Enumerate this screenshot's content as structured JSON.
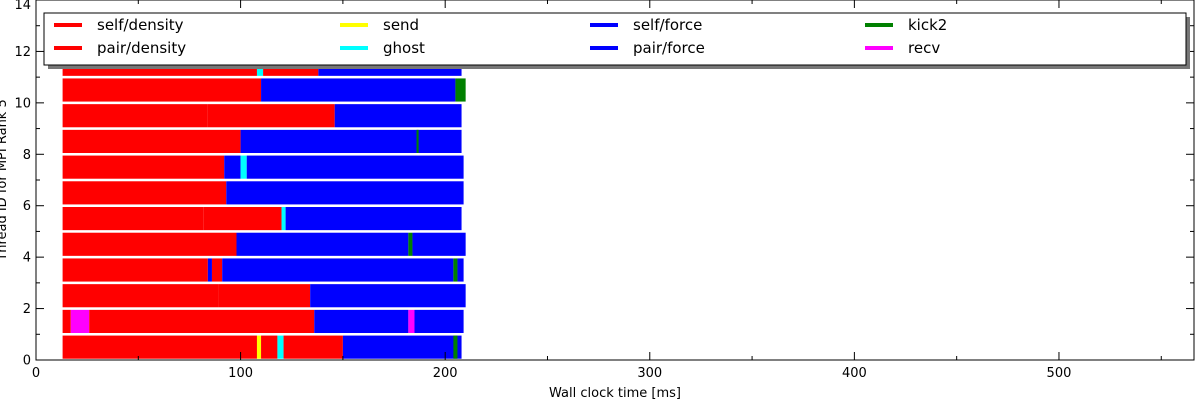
{
  "chart_data": {
    "type": "bar",
    "xlabel": "Wall clock time [ms]",
    "ylabel": "Thread ID for MPI Rank 5",
    "xlim": [
      0,
      566
    ],
    "ylim": [
      0,
      14
    ],
    "xticks": [
      0,
      100,
      200,
      300,
      400,
      500
    ],
    "yticks": [
      0,
      2,
      4,
      6,
      8,
      10,
      12,
      14
    ],
    "grid": false,
    "legend_position": "top",
    "legend": [
      {
        "label": "self/density",
        "color": "#ff0000"
      },
      {
        "label": "pair/density",
        "color": "#ff0000"
      },
      {
        "label": "send",
        "color": "#ffff00"
      },
      {
        "label": "ghost",
        "color": "#00ffff"
      },
      {
        "label": "self/force",
        "color": "#0000ff"
      },
      {
        "label": "pair/force",
        "color": "#0000ff"
      },
      {
        "label": "kick2",
        "color": "#008000"
      },
      {
        "label": "recv",
        "color": "#ff00ff"
      }
    ],
    "colors": {
      "self/density": "#ff0000",
      "pair/density": "#ff0000",
      "send": "#ffff00",
      "ghost": "#00ffff",
      "self/force": "#0000ff",
      "pair/force": "#0000ff",
      "kick2": "#008000",
      "recv": "#ff00ff"
    },
    "threads": [
      {
        "thread": 0,
        "tasks": [
          {
            "start": 13,
            "end": 108,
            "type": "pair/density"
          },
          {
            "start": 108,
            "end": 110,
            "type": "send"
          },
          {
            "start": 110,
            "end": 118,
            "type": "pair/density"
          },
          {
            "start": 118,
            "end": 121,
            "type": "ghost"
          },
          {
            "start": 121,
            "end": 150,
            "type": "pair/density"
          },
          {
            "start": 150,
            "end": 208,
            "type": "pair/force"
          },
          {
            "start": 204,
            "end": 206,
            "type": "kick2"
          }
        ]
      },
      {
        "thread": 1,
        "tasks": [
          {
            "start": 13,
            "end": 17,
            "type": "pair/density"
          },
          {
            "start": 17,
            "end": 26,
            "type": "recv"
          },
          {
            "start": 26,
            "end": 136,
            "type": "pair/density"
          },
          {
            "start": 136,
            "end": 182,
            "type": "pair/force"
          },
          {
            "start": 182,
            "end": 185,
            "type": "recv"
          },
          {
            "start": 185,
            "end": 209,
            "type": "pair/force"
          }
        ]
      },
      {
        "thread": 2,
        "tasks": [
          {
            "start": 13,
            "end": 89,
            "type": "pair/density"
          },
          {
            "start": 89,
            "end": 134,
            "type": "pair/density"
          },
          {
            "start": 134,
            "end": 210,
            "type": "pair/force"
          }
        ]
      },
      {
        "thread": 3,
        "tasks": [
          {
            "start": 13,
            "end": 84,
            "type": "pair/density"
          },
          {
            "start": 84,
            "end": 86,
            "type": "pair/force"
          },
          {
            "start": 86,
            "end": 91,
            "type": "pair/density"
          },
          {
            "start": 91,
            "end": 204,
            "type": "pair/force"
          },
          {
            "start": 204,
            "end": 206,
            "type": "kick2"
          },
          {
            "start": 206,
            "end": 209,
            "type": "pair/force"
          }
        ]
      },
      {
        "thread": 4,
        "tasks": [
          {
            "start": 13,
            "end": 98,
            "type": "pair/density"
          },
          {
            "start": 98,
            "end": 182,
            "type": "pair/force"
          },
          {
            "start": 182,
            "end": 184,
            "type": "kick2"
          },
          {
            "start": 184,
            "end": 210,
            "type": "pair/force"
          }
        ]
      },
      {
        "thread": 5,
        "tasks": [
          {
            "start": 13,
            "end": 82,
            "type": "pair/density"
          },
          {
            "start": 82,
            "end": 120,
            "type": "pair/density"
          },
          {
            "start": 120,
            "end": 122,
            "type": "ghost"
          },
          {
            "start": 122,
            "end": 208,
            "type": "pair/force"
          }
        ]
      },
      {
        "thread": 6,
        "tasks": [
          {
            "start": 13,
            "end": 93,
            "type": "pair/density"
          },
          {
            "start": 93,
            "end": 209,
            "type": "pair/force"
          }
        ]
      },
      {
        "thread": 7,
        "tasks": [
          {
            "start": 13,
            "end": 92,
            "type": "pair/density"
          },
          {
            "start": 92,
            "end": 100,
            "type": "pair/force"
          },
          {
            "start": 100,
            "end": 103,
            "type": "ghost"
          },
          {
            "start": 103,
            "end": 209,
            "type": "pair/force"
          }
        ]
      },
      {
        "thread": 8,
        "tasks": [
          {
            "start": 13,
            "end": 100,
            "type": "pair/density"
          },
          {
            "start": 100,
            "end": 208,
            "type": "pair/force"
          },
          {
            "start": 186,
            "end": 187,
            "type": "kick2"
          }
        ]
      },
      {
        "thread": 9,
        "tasks": [
          {
            "start": 13,
            "end": 84,
            "type": "pair/density"
          },
          {
            "start": 84,
            "end": 146,
            "type": "pair/density"
          },
          {
            "start": 146,
            "end": 208,
            "type": "pair/force"
          }
        ]
      },
      {
        "thread": 10,
        "tasks": [
          {
            "start": 13,
            "end": 98,
            "type": "pair/density"
          },
          {
            "start": 98,
            "end": 110,
            "type": "pair/density"
          },
          {
            "start": 110,
            "end": 205,
            "type": "pair/force"
          },
          {
            "start": 205,
            "end": 210,
            "type": "kick2"
          }
        ]
      },
      {
        "thread": 11,
        "tasks": [
          {
            "start": 13,
            "end": 108,
            "type": "pair/density"
          },
          {
            "start": 108,
            "end": 111,
            "type": "ghost"
          },
          {
            "start": 111,
            "end": 138,
            "type": "pair/density"
          },
          {
            "start": 138,
            "end": 208,
            "type": "pair/force"
          }
        ]
      }
    ]
  }
}
